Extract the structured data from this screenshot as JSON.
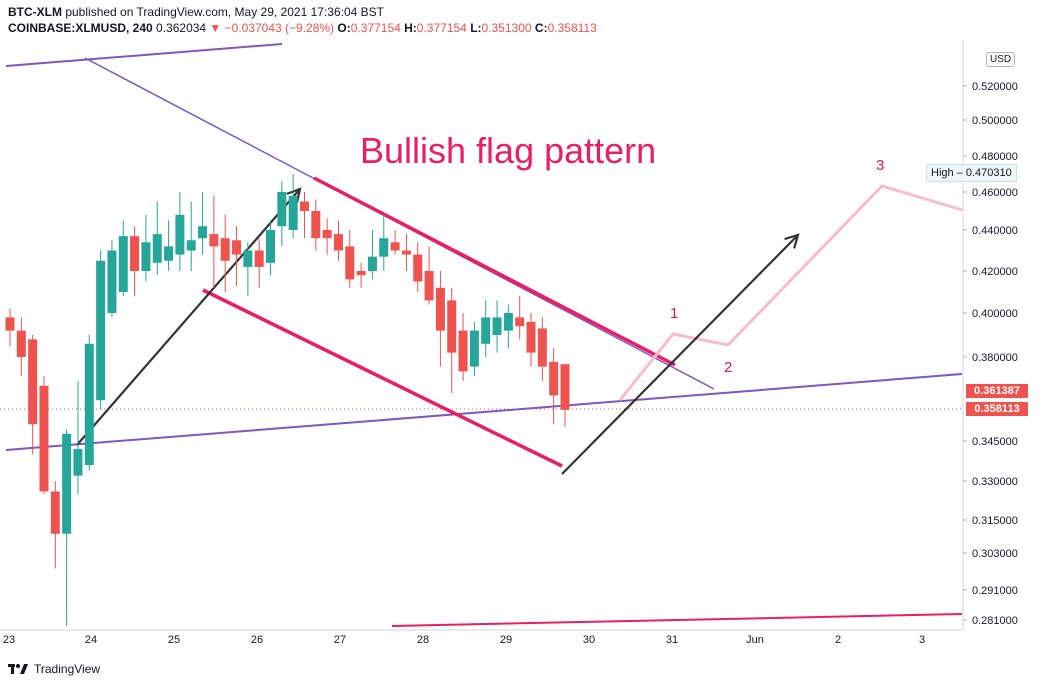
{
  "header": {
    "line1_symbol": "BTC-XLM",
    "line1_rest": " published on TradingView.com, May 29, 2021 17:36:04 BST",
    "line2_symbol": "COINBASE:XLMUSD, 240",
    "line2_price": " 0.362034 ",
    "line2_change": "▼ −0.037043 (−9.28%)",
    "o_label": " O:",
    "o_value": "0.377154",
    "h_label": " H:",
    "h_value": "0.377154",
    "l_label": " L:",
    "l_value": "0.351300",
    "c_label": " C:",
    "c_value": "0.358113"
  },
  "currency": "USD",
  "high_label": "High",
  "high_value": "0.470310",
  "price_tags": {
    "upper": "0.361387",
    "lower": "0.358113"
  },
  "footer": {
    "brand": "TradingView"
  },
  "colors": {
    "up": "#26a69a",
    "down": "#ef5350",
    "trend": "#7e57c2",
    "flag": "#e91e63",
    "projection": "#f8bbd0",
    "arrow": "#333333"
  },
  "chart_data": {
    "type": "candlestick",
    "title": "Bullish flag pattern",
    "ylim": [
      0.276,
      0.556
    ],
    "y_ticks": [
      "0.520000",
      "0.500000",
      "0.480000",
      "0.460000",
      "0.440000",
      "0.420000",
      "0.400000",
      "0.380000",
      "0.345000",
      "0.330000",
      "0.315000",
      "0.303000",
      "0.291000",
      "0.281000"
    ],
    "x_ticks": [
      "23",
      "24",
      "25",
      "26",
      "27",
      "28",
      "29",
      "30",
      "31",
      "Jun",
      "2",
      "3"
    ],
    "annotations": [
      "1",
      "2",
      "3"
    ],
    "candles": [
      {
        "o": 0.398,
        "h": 0.402,
        "l": 0.385,
        "c": 0.392
      },
      {
        "o": 0.392,
        "h": 0.398,
        "l": 0.372,
        "c": 0.38
      },
      {
        "o": 0.388,
        "h": 0.39,
        "l": 0.34,
        "c": 0.352
      },
      {
        "o": 0.368,
        "h": 0.372,
        "l": 0.325,
        "c": 0.326
      },
      {
        "o": 0.326,
        "h": 0.33,
        "l": 0.298,
        "c": 0.31
      },
      {
        "o": 0.31,
        "h": 0.35,
        "l": 0.279,
        "c": 0.348
      },
      {
        "o": 0.332,
        "h": 0.37,
        "l": 0.325,
        "c": 0.342
      },
      {
        "o": 0.336,
        "h": 0.39,
        "l": 0.334,
        "c": 0.386
      },
      {
        "o": 0.362,
        "h": 0.43,
        "l": 0.358,
        "c": 0.425
      },
      {
        "o": 0.4,
        "h": 0.435,
        "l": 0.398,
        "c": 0.43
      },
      {
        "o": 0.41,
        "h": 0.445,
        "l": 0.408,
        "c": 0.437
      },
      {
        "o": 0.437,
        "h": 0.442,
        "l": 0.408,
        "c": 0.42
      },
      {
        "o": 0.42,
        "h": 0.448,
        "l": 0.415,
        "c": 0.434
      },
      {
        "o": 0.424,
        "h": 0.455,
        "l": 0.418,
        "c": 0.438
      },
      {
        "o": 0.425,
        "h": 0.445,
        "l": 0.42,
        "c": 0.432
      },
      {
        "o": 0.428,
        "h": 0.46,
        "l": 0.42,
        "c": 0.448
      },
      {
        "o": 0.43,
        "h": 0.455,
        "l": 0.42,
        "c": 0.435
      },
      {
        "o": 0.436,
        "h": 0.46,
        "l": 0.428,
        "c": 0.442
      },
      {
        "o": 0.438,
        "h": 0.458,
        "l": 0.412,
        "c": 0.432
      },
      {
        "o": 0.436,
        "h": 0.448,
        "l": 0.41,
        "c": 0.425
      },
      {
        "o": 0.435,
        "h": 0.442,
        "l": 0.413,
        "c": 0.428
      },
      {
        "o": 0.422,
        "h": 0.434,
        "l": 0.408,
        "c": 0.43
      },
      {
        "o": 0.43,
        "h": 0.436,
        "l": 0.412,
        "c": 0.422
      },
      {
        "o": 0.424,
        "h": 0.445,
        "l": 0.418,
        "c": 0.44
      },
      {
        "o": 0.442,
        "h": 0.466,
        "l": 0.432,
        "c": 0.46
      },
      {
        "o": 0.44,
        "h": 0.47,
        "l": 0.436,
        "c": 0.458
      },
      {
        "o": 0.455,
        "h": 0.46,
        "l": 0.436,
        "c": 0.45
      },
      {
        "o": 0.45,
        "h": 0.456,
        "l": 0.43,
        "c": 0.436
      },
      {
        "o": 0.44,
        "h": 0.446,
        "l": 0.428,
        "c": 0.436
      },
      {
        "o": 0.438,
        "h": 0.445,
        "l": 0.425,
        "c": 0.43
      },
      {
        "o": 0.432,
        "h": 0.44,
        "l": 0.412,
        "c": 0.416
      },
      {
        "o": 0.42,
        "h": 0.424,
        "l": 0.412,
        "c": 0.418
      },
      {
        "o": 0.42,
        "h": 0.44,
        "l": 0.416,
        "c": 0.427
      },
      {
        "o": 0.427,
        "h": 0.448,
        "l": 0.42,
        "c": 0.436
      },
      {
        "o": 0.434,
        "h": 0.44,
        "l": 0.428,
        "c": 0.43
      },
      {
        "o": 0.43,
        "h": 0.438,
        "l": 0.42,
        "c": 0.428
      },
      {
        "o": 0.428,
        "h": 0.434,
        "l": 0.41,
        "c": 0.415
      },
      {
        "o": 0.42,
        "h": 0.432,
        "l": 0.404,
        "c": 0.406
      },
      {
        "o": 0.412,
        "h": 0.42,
        "l": 0.376,
        "c": 0.392
      },
      {
        "o": 0.406,
        "h": 0.412,
        "l": 0.365,
        "c": 0.382
      },
      {
        "o": 0.392,
        "h": 0.4,
        "l": 0.37,
        "c": 0.374
      },
      {
        "o": 0.376,
        "h": 0.396,
        "l": 0.372,
        "c": 0.392
      },
      {
        "o": 0.386,
        "h": 0.406,
        "l": 0.38,
        "c": 0.398
      },
      {
        "o": 0.39,
        "h": 0.406,
        "l": 0.382,
        "c": 0.398
      },
      {
        "o": 0.392,
        "h": 0.404,
        "l": 0.384,
        "c": 0.4
      },
      {
        "o": 0.398,
        "h": 0.408,
        "l": 0.388,
        "c": 0.394
      },
      {
        "o": 0.396,
        "h": 0.4,
        "l": 0.376,
        "c": 0.382
      },
      {
        "o": 0.393,
        "h": 0.398,
        "l": 0.37,
        "c": 0.376
      },
      {
        "o": 0.378,
        "h": 0.384,
        "l": 0.352,
        "c": 0.364
      },
      {
        "o": 0.377,
        "h": 0.377,
        "l": 0.351,
        "c": 0.358
      }
    ]
  }
}
